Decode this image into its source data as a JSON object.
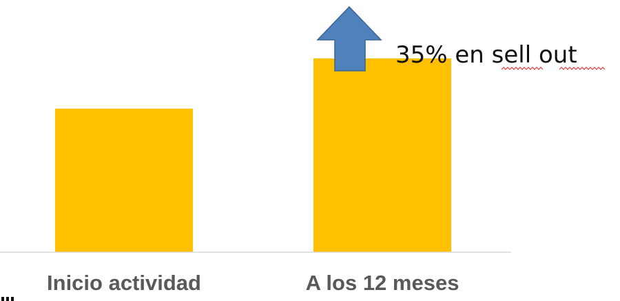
{
  "colors": {
    "bar": "#FFC000",
    "arrow_fill": "#4F81BD",
    "arrow_stroke": "#3A6396",
    "baseline": "#D9D9D9",
    "label_text": "#595959",
    "annotation_text": "#111111"
  },
  "icons": {
    "arrow": "up-arrow-icon"
  },
  "chart_data": {
    "type": "bar",
    "categories": [
      "Inicio actividad",
      "A los 12 meses"
    ],
    "values": [
      100,
      135
    ],
    "ylim": [
      0,
      135
    ],
    "grid": false,
    "legend": "none",
    "annotations": [
      {
        "text": "35% en sell out",
        "category": "A los 12 meses"
      }
    ]
  }
}
